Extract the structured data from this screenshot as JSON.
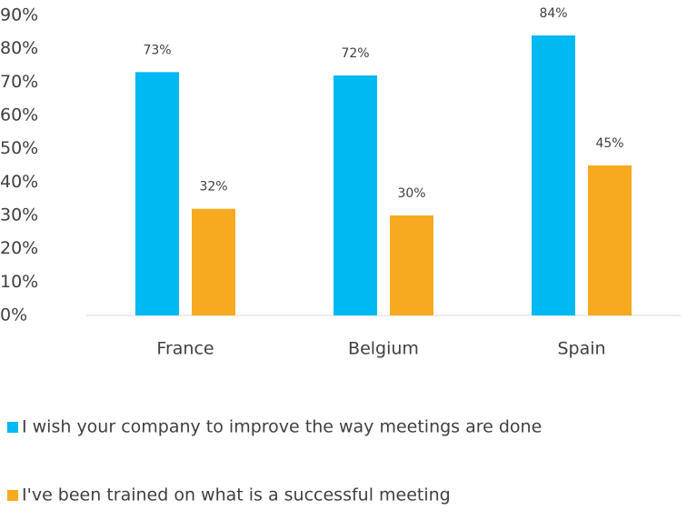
{
  "chart_data": {
    "type": "bar",
    "categories": [
      "France",
      "Belgium",
      "Spain"
    ],
    "series": [
      {
        "name": "I wish your company to improve the way meetings are done",
        "color": "#00B8F2",
        "values": [
          73,
          72,
          84
        ],
        "value_labels": [
          "73%",
          "72%",
          "84%"
        ]
      },
      {
        "name": "I've been trained on what is a successful meeting",
        "color": "#F7AA1F",
        "values": [
          32,
          30,
          45
        ],
        "value_labels": [
          "32%",
          "30%",
          "45%"
        ]
      }
    ],
    "ylim": [
      0,
      90
    ],
    "yticks": [
      {
        "value": 0,
        "label": "0%"
      },
      {
        "value": 10,
        "label": "10%"
      },
      {
        "value": 20,
        "label": "20%"
      },
      {
        "value": 30,
        "label": "30%"
      },
      {
        "value": 40,
        "label": "40%"
      },
      {
        "value": 50,
        "label": "50%"
      },
      {
        "value": 60,
        "label": "60%"
      },
      {
        "value": 70,
        "label": "70%"
      },
      {
        "value": 80,
        "label": "80%"
      },
      {
        "value": 90,
        "label": "90%"
      }
    ],
    "grid": false,
    "legend": "bottom"
  }
}
